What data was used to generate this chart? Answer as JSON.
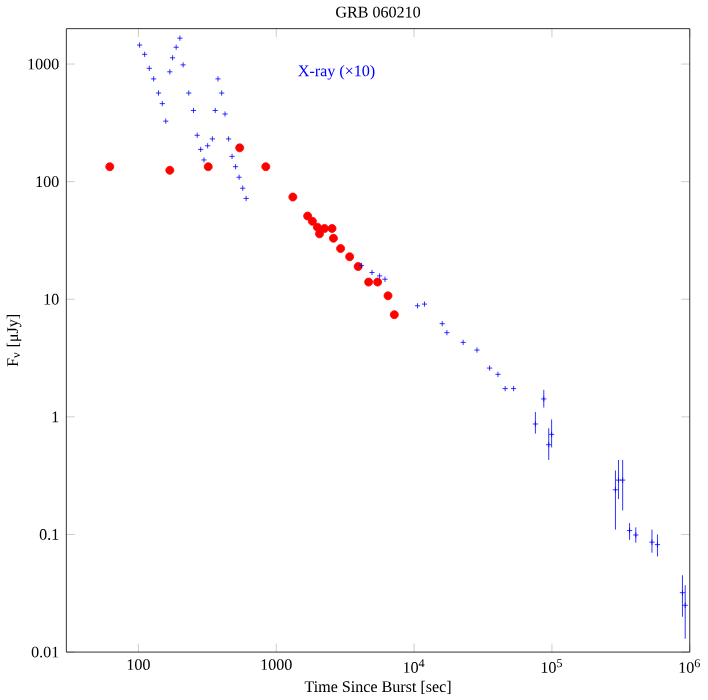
{
  "chart_data": {
    "type": "scatter",
    "title": "GRB 060210",
    "xlabel": "Time Since Burst [sec]",
    "ylabel": "F$_{ν}$ [μJy]",
    "log": "xy",
    "grid": false,
    "legend": false,
    "xlim": [
      30,
      1000000
    ],
    "ylim": [
      0.01,
      2000
    ],
    "xticks": [
      100,
      1000,
      {
        "value": 10000,
        "label": "10$^{4}$"
      },
      {
        "value": 100000,
        "label": "10$^{5}$"
      },
      {
        "value": 1000000,
        "label": "10$^{6}$"
      }
    ],
    "yticks": [
      0.01,
      0.1,
      1,
      10,
      100,
      1000
    ],
    "series": [
      {
        "color": "#ff0000",
        "marker": "circle",
        "x": [
          62,
          169,
          321,
          543,
          840,
          1320,
          1690,
          1830,
          1990,
          2060,
          2240,
          2540,
          2600,
          2930,
          3410,
          3930,
          4680,
          5440,
          6470,
          7190
        ],
        "values": [
          134,
          125,
          134,
          194,
          134,
          74,
          51,
          46,
          41,
          36,
          40,
          40,
          33,
          27,
          23,
          19,
          14,
          14,
          10.7,
          7.4
        ]
      },
      {
        "name": "X-ray (×10)",
        "color": "#0000ff",
        "marker": "cross",
        "x": [
          102,
          111,
          120,
          129,
          140,
          149,
          158,
          169,
          177,
          188,
          200,
          211,
          232,
          251,
          267,
          283,
          299,
          318,
          344,
          361,
          378,
          402,
          425,
          451,
          478,
          507,
          538,
          571,
          605,
          4150,
          4950,
          5620,
          6150,
          10600,
          11900,
          16000,
          17300,
          22700,
          28600,
          35300,
          40600,
          45800,
          52700,
          75900,
          87300,
          94800,
          99500,
          289000,
          304000,
          326000,
          366000,
          406000,
          532000,
          583000,
          885000,
          927000
        ],
        "values": [
          1450,
          1210,
          920,
          748,
          567,
          461,
          327,
          859,
          1130,
          1390,
          1660,
          984,
          567,
          403,
          248,
          188,
          153,
          202,
          231,
          403,
          748,
          567,
          376,
          231,
          164,
          134,
          109,
          88,
          72,
          19.4,
          16.9,
          15.8,
          14.8,
          8.8,
          9.1,
          6.2,
          5.2,
          4.3,
          3.7,
          2.6,
          2.3,
          1.74,
          1.74,
          0.87,
          1.42,
          0.58,
          0.71,
          0.24,
          0.29,
          0.29,
          0.108,
          0.099,
          0.086,
          0.082,
          0.032,
          0.025
        ],
        "errors": [
          null,
          null,
          null,
          null,
          null,
          null,
          null,
          null,
          null,
          null,
          null,
          null,
          null,
          null,
          null,
          null,
          null,
          null,
          null,
          null,
          null,
          null,
          null,
          null,
          null,
          null,
          null,
          null,
          null,
          null,
          null,
          null,
          null,
          null,
          null,
          null,
          null,
          null,
          null,
          null,
          null,
          null,
          null,
          [
            0.72,
            1.1
          ],
          [
            1.2,
            1.7
          ],
          [
            0.43,
            0.8
          ],
          [
            0.55,
            0.95
          ],
          [
            0.11,
            0.35
          ],
          [
            0.2,
            0.43
          ],
          [
            0.16,
            0.43
          ],
          [
            0.09,
            0.125
          ],
          [
            0.085,
            0.115
          ],
          [
            0.07,
            0.11
          ],
          [
            0.065,
            0.1
          ],
          [
            0.02,
            0.045
          ],
          [
            0.013,
            0.037
          ]
        ]
      }
    ]
  }
}
